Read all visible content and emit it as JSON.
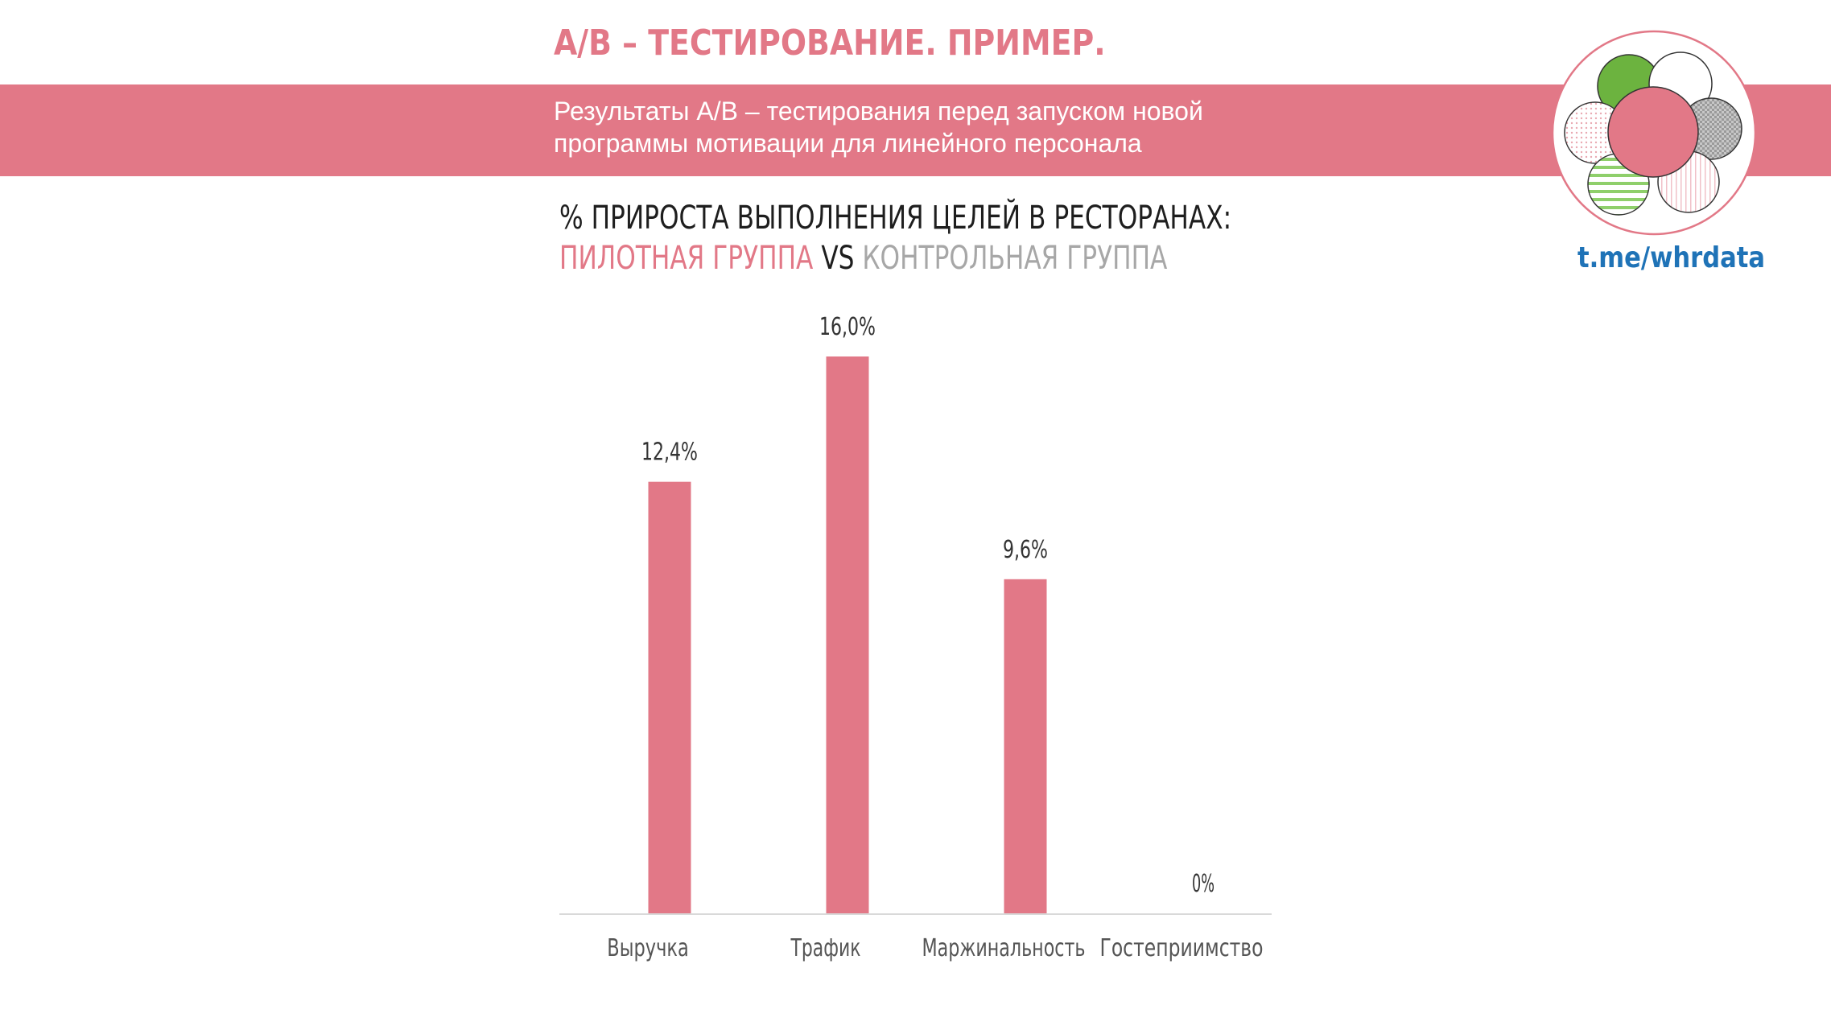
{
  "header": {
    "title": "А/В – ТЕСТИРОВАНИЕ. ПРИМЕР.",
    "banner_line1": "Результаты А/В – тестирования перед запуском новой",
    "banner_line2": "программы мотивации для линейного персонала"
  },
  "logo": {
    "link_text": "t.me/whrdata",
    "colors": {
      "green": "#6cb33f",
      "pink": "#e27887",
      "link": "#1f73b7"
    }
  },
  "chart_data": {
    "type": "bar",
    "title_line1": "% ПРИРОСТА ВЫПОЛНЕНИЯ ЦЕЛЕЙ В РЕСТОРАНАХ:",
    "title_pilot": "ПИЛОТНАЯ ГРУППА",
    "title_vs": " VS ",
    "title_control": "КОНТРОЛЬНАЯ ГРУППА",
    "categories": [
      "Выручка",
      "Трафик",
      "Маржинальность",
      "Гостеприимство"
    ],
    "values": [
      12.4,
      16.0,
      9.6,
      0
    ],
    "value_labels": [
      "12,4%",
      "16,0%",
      "9,6%",
      "0%"
    ],
    "ylim": [
      0,
      16
    ],
    "xlabel": "",
    "ylabel": "",
    "grid": false,
    "bar_color": "#e27887"
  }
}
